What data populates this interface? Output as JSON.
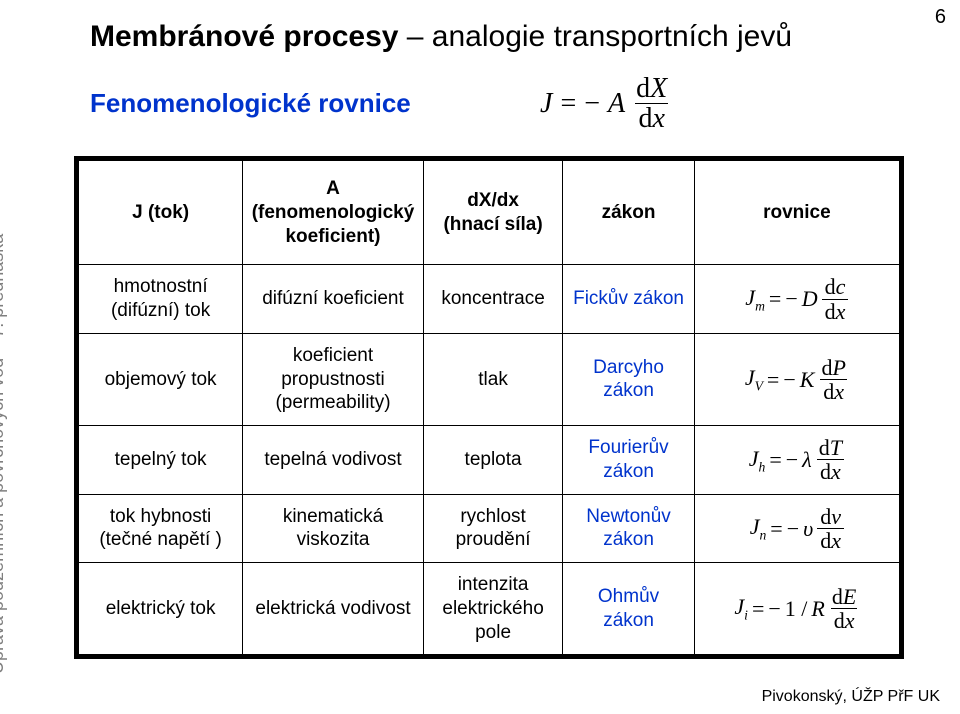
{
  "page_number": "6",
  "sidebar": "Úprava podzemních a povrchových vod – 7. přednáška",
  "title_bold": "Membránové procesy",
  "title_rest": " – analogie transportních jevů",
  "subtitle": "Fenomenologické rovnice",
  "main_eq": {
    "J": "J",
    "equals": "=",
    "minus": "−",
    "A": "A",
    "dX": "dX",
    "dx": "dx"
  },
  "header": {
    "c1": "J (tok)",
    "c2_line1": "A",
    "c2_line2": "(fenomenologický koeficient)",
    "c3_line1": "dX/dx",
    "c3_line2": "(hnací síla)",
    "c4": "zákon",
    "c5": "rovnice"
  },
  "rows": [
    {
      "c1": "hmotnostní (difúzní) tok",
      "c2": "difúzní koeficient",
      "c3": "koncentrace",
      "c4": "Fickův zákon",
      "eq": {
        "sub": "m",
        "coef": "D",
        "num": "dc",
        "den": "dx",
        "pre": ""
      }
    },
    {
      "c1": "objemový tok",
      "c2": "koeficient propustnosti (permeability)",
      "c3": "tlak",
      "c4": "Darcyho zákon",
      "eq": {
        "sub": "V",
        "coef": "K",
        "num": "dP",
        "den": "dx",
        "pre": ""
      }
    },
    {
      "c1": "tepelný tok",
      "c2": "tepelná vodivost",
      "c3": "teplota",
      "c4": "Fourierův zákon",
      "eq": {
        "sub": "h",
        "coef": "λ",
        "num": "dT",
        "den": "dx",
        "pre": ""
      }
    },
    {
      "c1": "tok hybnosti (tečné napětí )",
      "c2": "kinematická viskozita",
      "c3": "rychlost proudění",
      "c4": "Newtonův zákon",
      "eq": {
        "sub": "n",
        "coef": "υ",
        "num": "dv",
        "den": "dx",
        "pre": ""
      }
    },
    {
      "c1": "elektrický tok",
      "c2": "elektrická vodivost",
      "c3": "intenzita elektrického pole",
      "c4": "Ohmův zákon",
      "eq": {
        "sub": "i",
        "coef": "R",
        "num": "dE",
        "den": "dx",
        "pre": "1 / "
      }
    }
  ],
  "footer": "Pivokonský, ÚŽP PřF UK",
  "colors": {
    "blue": "#0033cc",
    "grey": "#7f7f7f",
    "black": "#000000",
    "background": "#ffffff"
  }
}
